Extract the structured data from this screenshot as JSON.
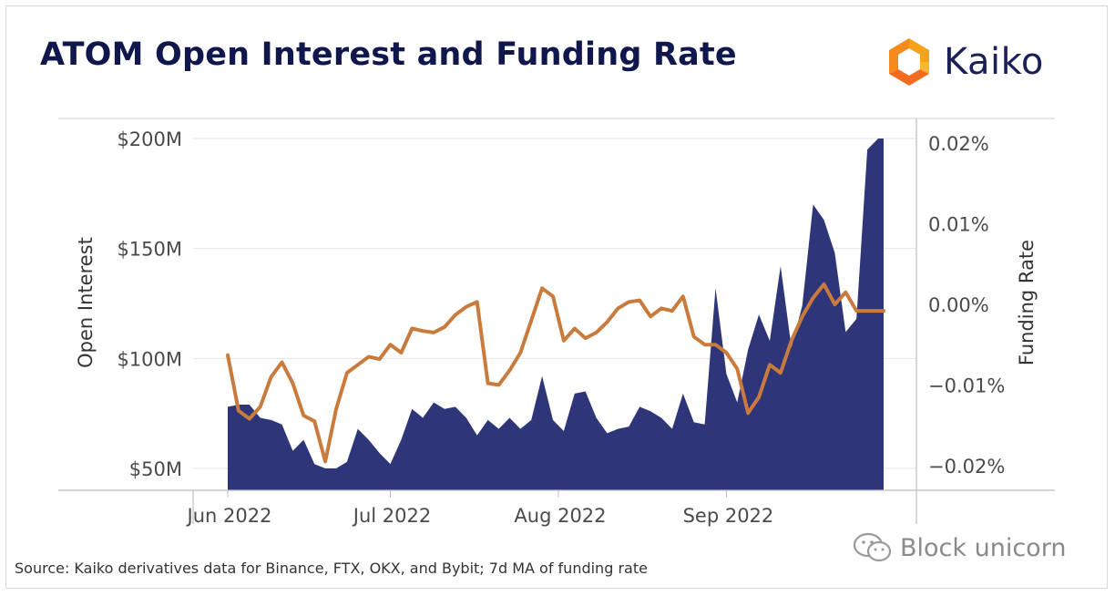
{
  "title": "ATOM Open Interest and Funding Rate",
  "logo": {
    "text": "Kaiko",
    "icon": "kaiko-hexagon-logo-icon"
  },
  "source": "Source: Kaiko derivatives data for Binance, FTX, OKX, and Bybit; 7d MA of funding rate",
  "watermark": {
    "text": "Block unicorn",
    "icon": "wechat-icon"
  },
  "colors": {
    "open_interest": "#2e3579",
    "funding_rate": "#c97b3d",
    "title": "#10174d",
    "grid": "#e6e6e6"
  },
  "chart_data": {
    "type": "area",
    "title": "ATOM Open Interest and Funding Rate",
    "x_range": [
      "2022-06-01",
      "2022-09-30"
    ],
    "x_ticks": [
      {
        "date": "2022-06-01",
        "label": "Jun 2022"
      },
      {
        "date": "2022-07-01",
        "label": "Jul 2022"
      },
      {
        "date": "2022-08-01",
        "label": "Aug 2022"
      },
      {
        "date": "2022-09-01",
        "label": "Sep 2022"
      }
    ],
    "y_left": {
      "label": "Open Interest",
      "range": [
        50,
        200
      ],
      "unit": "$M",
      "ticks": [
        "$50M",
        "$100M",
        "$150M",
        "$200M"
      ]
    },
    "y_right": {
      "label": "Funding Rate",
      "range": [
        -0.02,
        0.02
      ],
      "unit": "%",
      "ticks": [
        "−0.02%",
        "−0.01%",
        "0.00%",
        "0.01%",
        "0.02%"
      ]
    },
    "grid": true,
    "legend": "none",
    "x": [
      "2022-06-01",
      "2022-06-03",
      "2022-06-05",
      "2022-06-07",
      "2022-06-09",
      "2022-06-11",
      "2022-06-13",
      "2022-06-15",
      "2022-06-17",
      "2022-06-19",
      "2022-06-21",
      "2022-06-23",
      "2022-06-25",
      "2022-06-27",
      "2022-06-29",
      "2022-07-01",
      "2022-07-03",
      "2022-07-05",
      "2022-07-07",
      "2022-07-09",
      "2022-07-11",
      "2022-07-13",
      "2022-07-15",
      "2022-07-17",
      "2022-07-19",
      "2022-07-21",
      "2022-07-23",
      "2022-07-25",
      "2022-07-27",
      "2022-07-29",
      "2022-07-31",
      "2022-08-02",
      "2022-08-04",
      "2022-08-06",
      "2022-08-08",
      "2022-08-10",
      "2022-08-12",
      "2022-08-14",
      "2022-08-16",
      "2022-08-18",
      "2022-08-20",
      "2022-08-22",
      "2022-08-24",
      "2022-08-26",
      "2022-08-28",
      "2022-08-30",
      "2022-09-01",
      "2022-09-03",
      "2022-09-05",
      "2022-09-07",
      "2022-09-09",
      "2022-09-11",
      "2022-09-13",
      "2022-09-15",
      "2022-09-17",
      "2022-09-19",
      "2022-09-21",
      "2022-09-23",
      "2022-09-25",
      "2022-09-27",
      "2022-09-29",
      "2022-09-30"
    ],
    "series": [
      {
        "name": "Open Interest",
        "axis": "left",
        "style": "area",
        "values": [
          78,
          79,
          79,
          73,
          72,
          70,
          58,
          63,
          52,
          50,
          50,
          53,
          68,
          63,
          57,
          52,
          63,
          77,
          73,
          80,
          77,
          78,
          73,
          65,
          72,
          68,
          73,
          68,
          72,
          92,
          72,
          67,
          84,
          85,
          73,
          66,
          68,
          69,
          78,
          76,
          73,
          68,
          84,
          71,
          70,
          132,
          93,
          80,
          104,
          120,
          108,
          142,
          105,
          124,
          170,
          163,
          148,
          112,
          118,
          195,
          200,
          200
        ]
      },
      {
        "name": "Funding Rate",
        "axis": "right",
        "style": "line",
        "values": [
          -0.0063,
          -0.0132,
          -0.0142,
          -0.0127,
          -0.009,
          -0.0072,
          -0.0098,
          -0.0138,
          -0.0145,
          -0.0195,
          -0.013,
          -0.0085,
          -0.0075,
          -0.0065,
          -0.0068,
          -0.005,
          -0.006,
          -0.003,
          -0.0033,
          -0.0035,
          -0.0028,
          -0.0013,
          -0.0003,
          0.0003,
          -0.0098,
          -0.01,
          -0.0082,
          -0.006,
          -0.002,
          0.002,
          0.001,
          -0.0045,
          -0.003,
          -0.0042,
          -0.0035,
          -0.0022,
          -0.0005,
          0.0003,
          0.0005,
          -0.0015,
          -0.0005,
          -0.0008,
          0.001,
          -0.004,
          -0.005,
          -0.005,
          -0.006,
          -0.008,
          -0.0135,
          -0.0115,
          -0.0075,
          -0.0085,
          -0.0045,
          -0.0015,
          0.0008,
          0.0025,
          0.0,
          0.0015,
          -0.0008,
          -0.0008,
          -0.0008,
          -0.0008
        ]
      }
    ]
  }
}
